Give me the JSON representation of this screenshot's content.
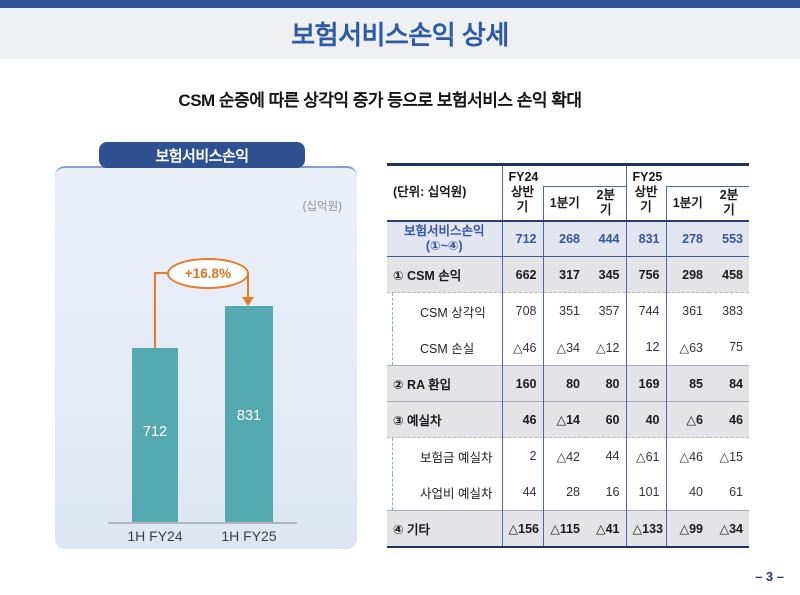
{
  "page": {
    "title": "보험서비스손익 상세",
    "subtitle": "CSM 순증에 따른 상각익 증가 등으로 보험서비스 손익 확대",
    "page_number": "– 3 –"
  },
  "chart_panel": {
    "tab_label": "보험서비스손익",
    "unit_label": "(십억원)",
    "annotation": "+16.8%"
  },
  "chart_data": [
    {
      "type": "bar",
      "title": "보험서비스손익",
      "unit": "십억원",
      "categories": [
        "1H FY24",
        "1H FY25"
      ],
      "values": [
        712,
        831
      ],
      "annotation": "+16.8%",
      "bar_color": "#54a9ae",
      "value_label_color": "#ffffff",
      "ylim": [
        0,
        900
      ],
      "grid": false,
      "legend": false
    },
    {
      "type": "table",
      "unit_header": "(단위: 십억원)",
      "column_groups": [
        {
          "label_lines": [
            "FY24",
            "상반기"
          ],
          "sub_columns": [
            "1분기",
            "2분기"
          ]
        },
        {
          "label_lines": [
            "FY25",
            "상반기"
          ],
          "sub_columns": [
            "1분기",
            "2분기"
          ]
        }
      ],
      "rows": [
        {
          "style": "total",
          "label_lines": [
            "보험서비스손익",
            "(①~④)"
          ],
          "values": [
            "712",
            "268",
            "444",
            "831",
            "278",
            "553"
          ]
        },
        {
          "style": "major",
          "label": "① CSM 손익",
          "values": [
            "662",
            "317",
            "345",
            "756",
            "298",
            "458"
          ]
        },
        {
          "style": "sub",
          "label": "CSM 상각익",
          "values": [
            "708",
            "351",
            "357",
            "744",
            "361",
            "383"
          ]
        },
        {
          "style": "sub",
          "label": "CSM 손실",
          "values": [
            "△46",
            "△34",
            "△12",
            "12",
            "△63",
            "75"
          ]
        },
        {
          "style": "major",
          "label": "② RA 환입",
          "values": [
            "160",
            "80",
            "80",
            "169",
            "85",
            "84"
          ]
        },
        {
          "style": "major",
          "label": "③ 예실차",
          "values": [
            "46",
            "△14",
            "60",
            "40",
            "△6",
            "46"
          ]
        },
        {
          "style": "sub",
          "label": "보험금 예실차",
          "values": [
            "2",
            "△42",
            "44",
            "△61",
            "△46",
            "△15"
          ]
        },
        {
          "style": "sub",
          "label": "사업비 예실차",
          "values": [
            "44",
            "28",
            "16",
            "101",
            "40",
            "61"
          ]
        },
        {
          "style": "major",
          "label": "④ 기타",
          "values": [
            "△156",
            "△115",
            "△41",
            "△133",
            "△99",
            "△34"
          ]
        }
      ]
    }
  ],
  "colors": {
    "top_bar": "#2f5597",
    "title_text": "#2e5ba9",
    "accent_orange": "#e87b23",
    "bar_teal": "#54a9ae",
    "table_border_navy": "#1d3361",
    "table_line_blue": "#4a69ad",
    "row_total_bg": "#e3e6f1",
    "row_major_bg": "#e4e4e6"
  }
}
